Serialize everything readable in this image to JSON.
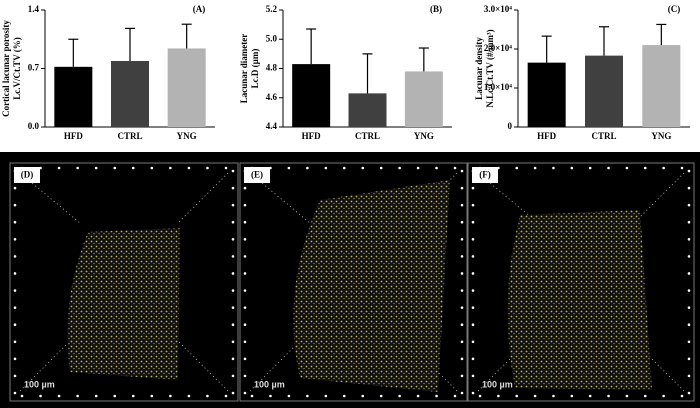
{
  "chart_data": [
    {
      "type": "bar",
      "panel": "(A)",
      "ylabel": [
        "Cortical lacunar porosity",
        "Lc.V/Ct.TV (%)"
      ],
      "categories": [
        "HFD",
        "CTRL",
        "YNG"
      ],
      "values": [
        0.72,
        0.79,
        0.94
      ],
      "errors": [
        0.33,
        0.39,
        0.29
      ],
      "colors": [
        "#000000",
        "#404040",
        "#b3b3b3"
      ],
      "ylim": [
        0,
        1.4
      ],
      "yticks": [
        {
          "value": 0,
          "label": "0.0"
        },
        0.7,
        1.4
      ]
    },
    {
      "type": "bar",
      "panel": "(B)",
      "ylabel": [
        "Lacunar diameter",
        "Lc.D (µm)"
      ],
      "categories": [
        "HFD",
        "CTRL",
        "YNG"
      ],
      "values": [
        4.83,
        4.63,
        4.78
      ],
      "errors": [
        0.24,
        0.27,
        0.16
      ],
      "colors": [
        "#000000",
        "#404040",
        "#b3b3b3"
      ],
      "ylim": [
        4.4,
        5.2
      ],
      "yticks": [
        4.4,
        4.6,
        4.8,
        {
          "value": 5.0,
          "label": "5.0"
        },
        5.2
      ]
    },
    {
      "type": "bar",
      "panel": "(C)",
      "ylabel": [
        "Lacunar density",
        "N.Lc/Ct.TV (#/mm³)"
      ],
      "categories": [
        "HFD",
        "CTRL",
        "YNG"
      ],
      "values": [
        16500,
        18300,
        21000
      ],
      "errors": [
        6800,
        7400,
        5300
      ],
      "colors": [
        "#000000",
        "#404040",
        "#b3b3b3"
      ],
      "ylim": [
        0,
        30000
      ],
      "yticks": [
        0,
        {
          "value": 10000,
          "label": "1.0×10⁴"
        },
        {
          "value": 20000,
          "label": "2.0×10⁴"
        },
        {
          "value": 30000,
          "label": "3.0×10⁴"
        }
      ]
    }
  ],
  "renders": [
    {
      "label": "(D)",
      "scale": "100 µm"
    },
    {
      "label": "(E)",
      "scale": "100 µm"
    },
    {
      "label": "(F)",
      "scale": "100 µm"
    }
  ]
}
